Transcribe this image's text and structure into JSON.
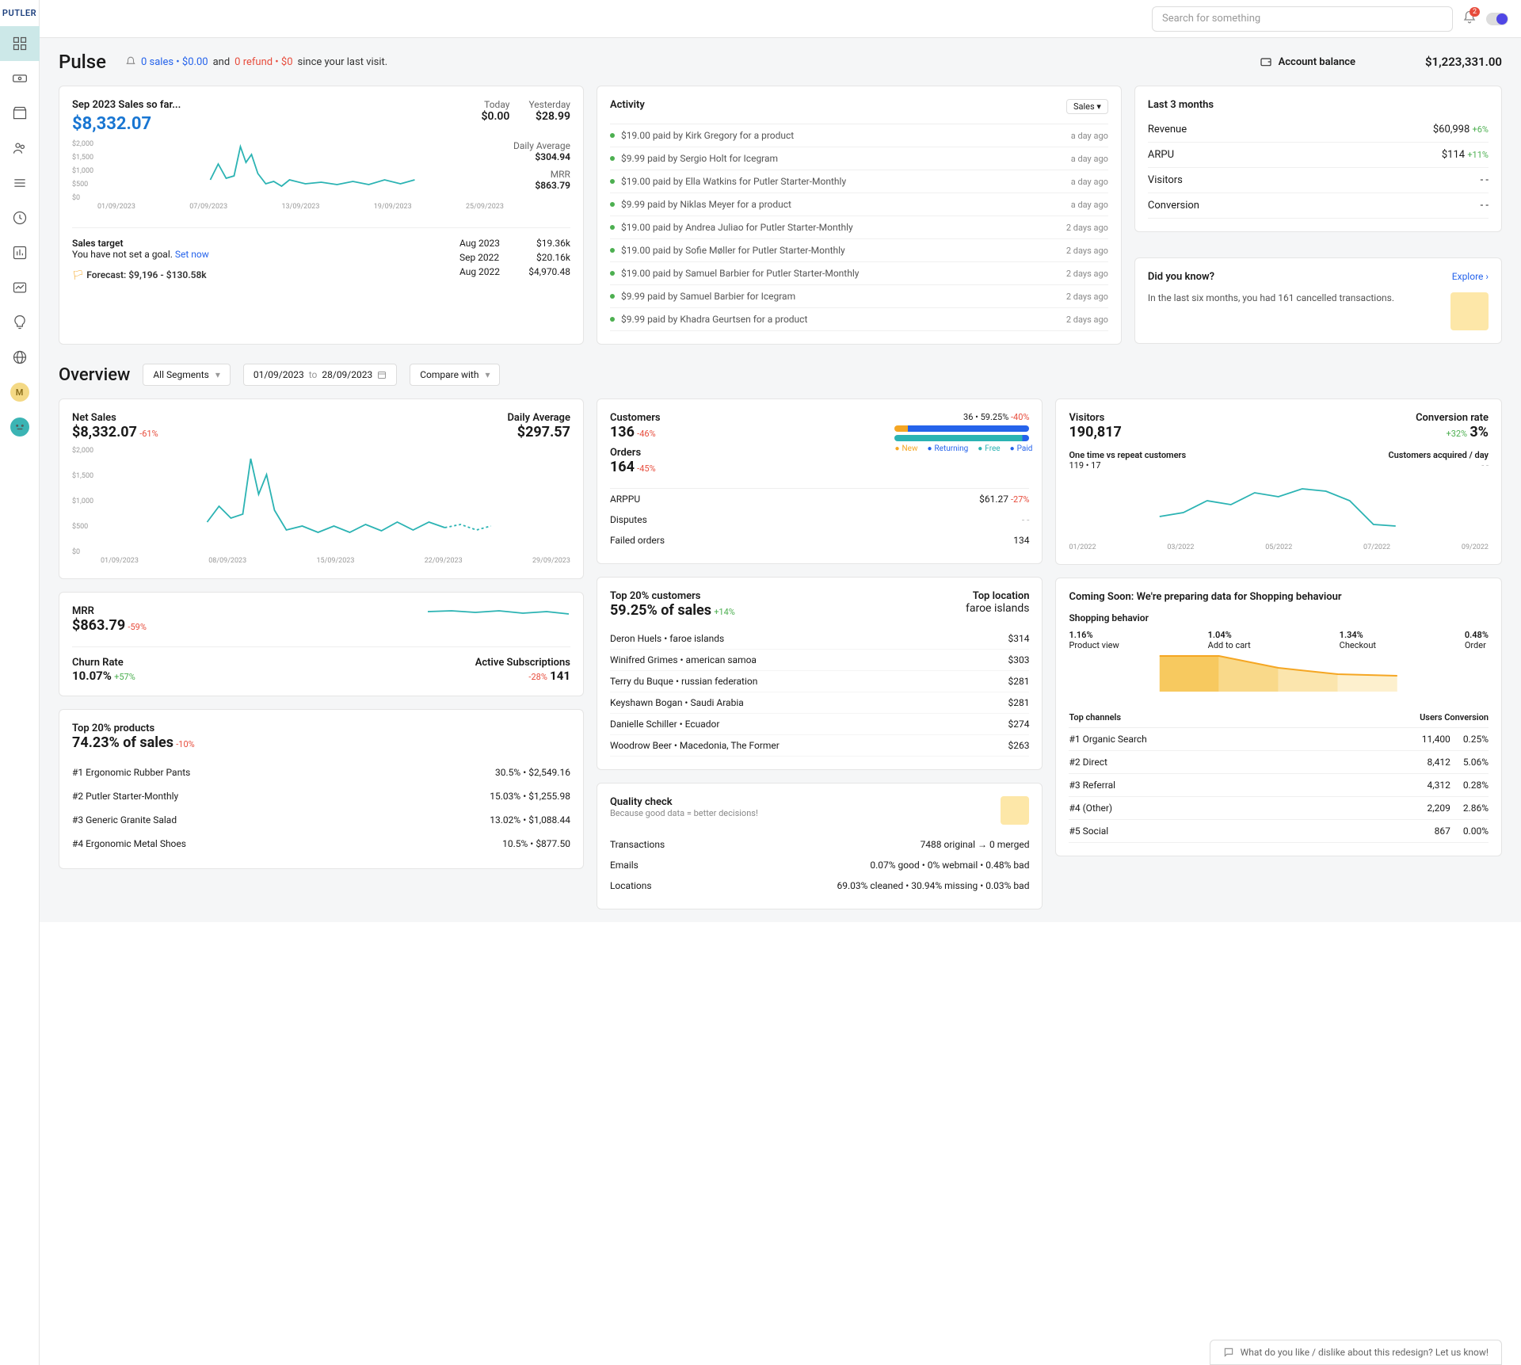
{
  "brand": "PUTLER",
  "search_placeholder": "Search for something",
  "notif_count": "2",
  "pulse": {
    "title": "Pulse",
    "summary_sales": "0 sales • $0.00",
    "summary_and": " and ",
    "summary_refund": "0 refund • $0",
    "summary_since": " since your last visit.",
    "balance_label": "Account balance",
    "balance_value": "$1,223,331.00"
  },
  "sales_card": {
    "title": "Sep 2023 Sales so far...",
    "value": "$8,332.07",
    "today_label": "Today",
    "today_val": "$0.00",
    "yesterday_label": "Yesterday",
    "yesterday_val": "$28.99",
    "daily_avg_label": "Daily Average",
    "daily_avg_val": "$304.94",
    "mrr_label": "MRR",
    "mrr_val": "$863.79",
    "ylabels": [
      "$2,000",
      "$1,500",
      "$1,000",
      "$500",
      "$0"
    ],
    "xlabels": [
      "01/09/2023",
      "07/09/2023",
      "13/09/2023",
      "19/09/2023",
      "25/09/2023"
    ],
    "target_title": "Sales target",
    "target_text": "You have not set a goal.",
    "set_now": "Set now",
    "forecast": "Forecast: $9,196 - $130.58k",
    "hist": [
      {
        "period": "Aug 2023",
        "val": "$19.36k"
      },
      {
        "period": "Sep 2022",
        "val": "$20.16k"
      },
      {
        "period": "Aug 2022",
        "val": "$4,970.48"
      }
    ]
  },
  "activity": {
    "title": "Activity",
    "filter": "Sales",
    "items": [
      {
        "text": "$19.00 paid by Kirk Gregory for a product",
        "time": "a day ago"
      },
      {
        "text": "$9.99 paid by Sergio Holt for Icegram",
        "time": "a day ago"
      },
      {
        "text": "$19.00 paid by Ella Watkins for Putler Starter-Monthly",
        "time": "a day ago"
      },
      {
        "text": "$9.99 paid by Niklas Meyer for a product",
        "time": "a day ago"
      },
      {
        "text": "$19.00 paid by Andrea Juliao for Putler Starter-Monthly",
        "time": "2 days ago"
      },
      {
        "text": "$19.00 paid by Sofie Møller for Putler Starter-Monthly",
        "time": "2 days ago"
      },
      {
        "text": "$19.00 paid by Samuel Barbier for Putler Starter-Monthly",
        "time": "2 days ago"
      },
      {
        "text": "$9.99 paid by Samuel Barbier for Icegram",
        "time": "2 days ago"
      },
      {
        "text": "$9.99 paid by Khadra Geurtsen for a product",
        "time": "2 days ago"
      }
    ]
  },
  "last3": {
    "title": "Last 3 months",
    "rows": [
      {
        "label": "Revenue",
        "val": "$60,998",
        "pct": "+6%"
      },
      {
        "label": "ARPU",
        "val": "$114",
        "pct": "+11%"
      },
      {
        "label": "Visitors",
        "val": "- -",
        "pct": ""
      },
      {
        "label": "Conversion",
        "val": "- -",
        "pct": ""
      }
    ],
    "didyou_title": "Did you know?",
    "explore": "Explore",
    "didyou_text": "In the last six months, you had 161 cancelled transactions."
  },
  "overview": {
    "title": "Overview",
    "segments": "All Segments",
    "date_from": "01/09/2023",
    "date_to_label": "to",
    "date_to": "28/09/2023",
    "compare": "Compare with"
  },
  "netsales": {
    "title": "Net Sales",
    "value": "$8,332.07",
    "pct": "-61%",
    "daily_label": "Daily Average",
    "daily_val": "$297.57",
    "ylabels": [
      "$2,000",
      "$1,500",
      "$1,000",
      "$500",
      "$0"
    ],
    "xlabels": [
      "01/09/2023",
      "08/09/2023",
      "15/09/2023",
      "22/09/2023",
      "29/09/2023"
    ]
  },
  "mrr": {
    "title": "MRR",
    "value": "$863.79",
    "pct": "-59%",
    "churn_label": "Churn Rate",
    "churn_val": "10.07%",
    "churn_pct": "+57%",
    "subs_label": "Active Subscriptions",
    "subs_pct": "-28%",
    "subs_val": "141"
  },
  "topprod": {
    "title": "Top 20% products",
    "value": "74.23% of sales",
    "pct": "-10%",
    "rows": [
      {
        "name": "#1 Ergonomic Rubber Pants",
        "pct": "30.5%",
        "val": "$2,549.16"
      },
      {
        "name": "#2 Putler Starter-Monthly",
        "pct": "15.03%",
        "val": "$1,255.98"
      },
      {
        "name": "#3 Generic Granite Salad",
        "pct": "13.02%",
        "val": "$1,088.44"
      },
      {
        "name": "#4 Ergonomic Metal Shoes",
        "pct": "10.5%",
        "val": "$877.50"
      }
    ]
  },
  "custord": {
    "cust_label": "Customers",
    "cust_val": "136",
    "cust_pct": "-46%",
    "ord_label": "Orders",
    "ord_val": "164",
    "ord_pct": "-45%",
    "ret_text": "36 • 59.25%",
    "ret_pct": "-40%",
    "leg_new": "New",
    "leg_ret": "Returning",
    "leg_free": "Free",
    "leg_paid": "Paid",
    "arppu_label": "ARPPU",
    "arppu_val": "$61.27",
    "arppu_pct": "-27%",
    "disp_label": "Disputes",
    "disp_val": "- -",
    "fail_label": "Failed orders",
    "fail_val": "134"
  },
  "topcust": {
    "title": "Top 20% customers",
    "value": "59.25% of sales",
    "pct": "+14%",
    "loc_label": "Top location",
    "loc_val": "faroe islands",
    "rows": [
      {
        "name": "Deron Huels • faroe islands",
        "val": "$314"
      },
      {
        "name": "Winifred Grimes • american samoa",
        "val": "$303"
      },
      {
        "name": "Terry du Buque • russian federation",
        "val": "$281"
      },
      {
        "name": "Keyshawn Bogan • Saudi Arabia",
        "val": "$281"
      },
      {
        "name": "Danielle Schiller • Ecuador",
        "val": "$274"
      },
      {
        "name": "Woodrow Beer • Macedonia, The Former",
        "val": "$263"
      }
    ]
  },
  "quality": {
    "title": "Quality check",
    "sub": "Because good data = better decisions!",
    "trans_label": "Transactions",
    "trans_val": "7488 original → 0 merged",
    "email_label": "Emails",
    "email_val": "0.07% good • 0% webmail • 0.48% bad",
    "loc_label": "Locations",
    "loc_val": "69.03% cleaned • 30.94% missing • 0.03% bad"
  },
  "visitors": {
    "title": "Visitors",
    "value": "190,817",
    "conv_label": "Conversion rate",
    "conv_pct": "+32%",
    "conv_val": "3%",
    "onetime_label": "One time vs repeat customers",
    "onetime_val": "119 • 17",
    "acq_label": "Customers acquired / day",
    "acq_val": "- -",
    "xlabels": [
      "01/2022",
      "03/2022",
      "05/2022",
      "07/2022",
      "09/2022"
    ]
  },
  "shopping": {
    "title": "Coming Soon: We're preparing data for Shopping behaviour",
    "behav_title": "Shopping behavior",
    "steps": [
      {
        "pct": "1.16%",
        "label": "Product view"
      },
      {
        "pct": "1.04%",
        "label": "Add to cart"
      },
      {
        "pct": "1.34%",
        "label": "Checkout"
      },
      {
        "pct": "0.48%",
        "label": "Order"
      }
    ],
    "chan_title": "Top channels",
    "chan_users": "Users",
    "chan_conv": "Conversion",
    "channels": [
      {
        "name": "#1 Organic Search",
        "users": "11,400",
        "conv": "0.25%"
      },
      {
        "name": "#2 Direct",
        "users": "8,412",
        "conv": "5.06%"
      },
      {
        "name": "#3 Referral",
        "users": "4,312",
        "conv": "0.28%"
      },
      {
        "name": "#4 (Other)",
        "users": "2,209",
        "conv": "2.86%"
      },
      {
        "name": "#5 Social",
        "users": "867",
        "conv": "0.00%"
      }
    ]
  },
  "feedback": "What do you like / dislike about this redesign? Let us know!",
  "colors": {
    "teal": "#2bb3b3",
    "blue": "#2563eb",
    "green": "#4caf50",
    "orange": "#f5a623"
  }
}
